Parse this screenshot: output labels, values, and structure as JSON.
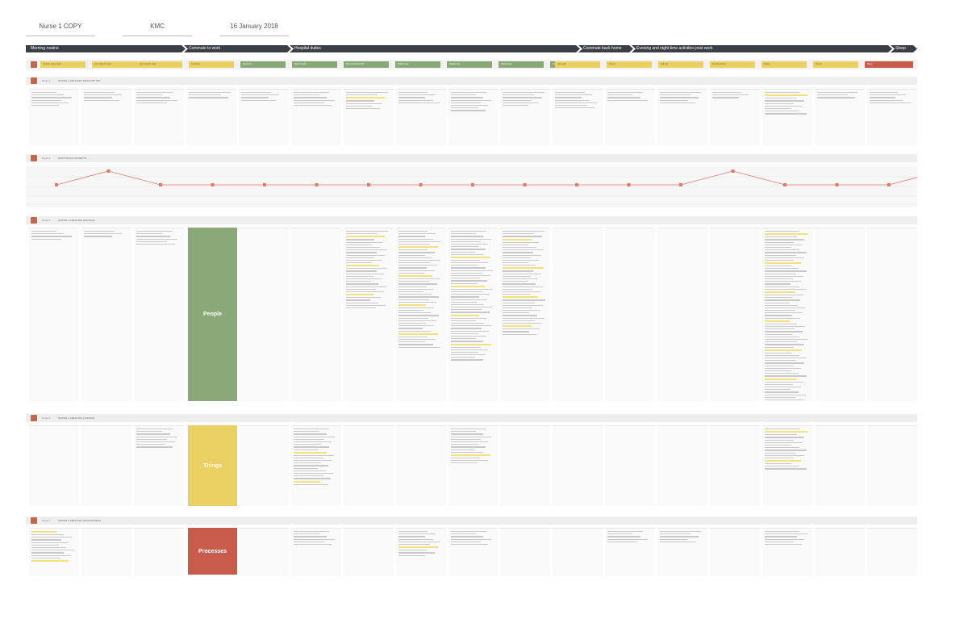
{
  "header": {
    "persona": "Nurse 1 COPY",
    "location": "KMC",
    "date": "16 January 2018"
  },
  "phases": [
    {
      "label": "Morning routine"
    },
    {
      "label": "Commute to work"
    },
    {
      "label": "Hospital duties"
    },
    {
      "label": "Commute back home"
    },
    {
      "label": "Evening and night-time activities post work"
    },
    {
      "label": "Sleep"
    }
  ],
  "activities": [
    {
      "label": "Freshen up for work",
      "color": "y"
    },
    {
      "label": "Get ready for work",
      "color": "y"
    },
    {
      "label": "Get ready for work",
      "color": "y"
    },
    {
      "label": "Commute",
      "color": "y"
    },
    {
      "label": "Handover",
      "color": "g"
    },
    {
      "label": "Ward rounds",
      "color": "g"
    },
    {
      "label": "Rounds with the MO",
      "color": "g"
    },
    {
      "label": "Patient care",
      "color": "g"
    },
    {
      "label": "Patient care",
      "color": "g"
    },
    {
      "label": "Patient care",
      "color": "g"
    },
    {
      "label": "Handover to next shift",
      "color": "g"
    },
    {
      "label": "Commute",
      "color": "y"
    },
    {
      "label": "Chores",
      "color": "y"
    },
    {
      "label": "Tea time",
      "color": "y"
    },
    {
      "label": "Cooking dinner",
      "color": "y"
    },
    {
      "label": "Dinner",
      "color": "y"
    },
    {
      "label": "Chores",
      "color": "y"
    },
    {
      "label": "Sleep",
      "color": "r"
    }
  ],
  "sections": {
    "task": {
      "who": "Nurse 1",
      "title": "NURSE 1 DETAILED DESCRIPTION"
    },
    "emotion": {
      "who": "Nurse 1",
      "title": "EMOTIONAL MOMENTS"
    },
    "people": {
      "who": "Nurse 1",
      "title": "NURSE 1 FEELINGS (PEOPLE)"
    },
    "things": {
      "who": "Nurse 1",
      "title": "NURSE 1 FEELINGS (THINGS)"
    },
    "processes": {
      "who": "Nurse 1",
      "title": "NURSE 1 FEELINGS (PROCESSES)"
    }
  },
  "categories": {
    "people": "People",
    "things": "Things",
    "processes": "Processes"
  },
  "emotion_levels": [
    1,
    0,
    1,
    1,
    1,
    1,
    1,
    1,
    1,
    1,
    1,
    1,
    1,
    0,
    1,
    1,
    1,
    0,
    1
  ],
  "colors": {
    "phase": "#3a3f46",
    "green": "#8aa878",
    "yellow": "#eacf63",
    "red": "#c85b4b",
    "line": "#e07a66"
  }
}
